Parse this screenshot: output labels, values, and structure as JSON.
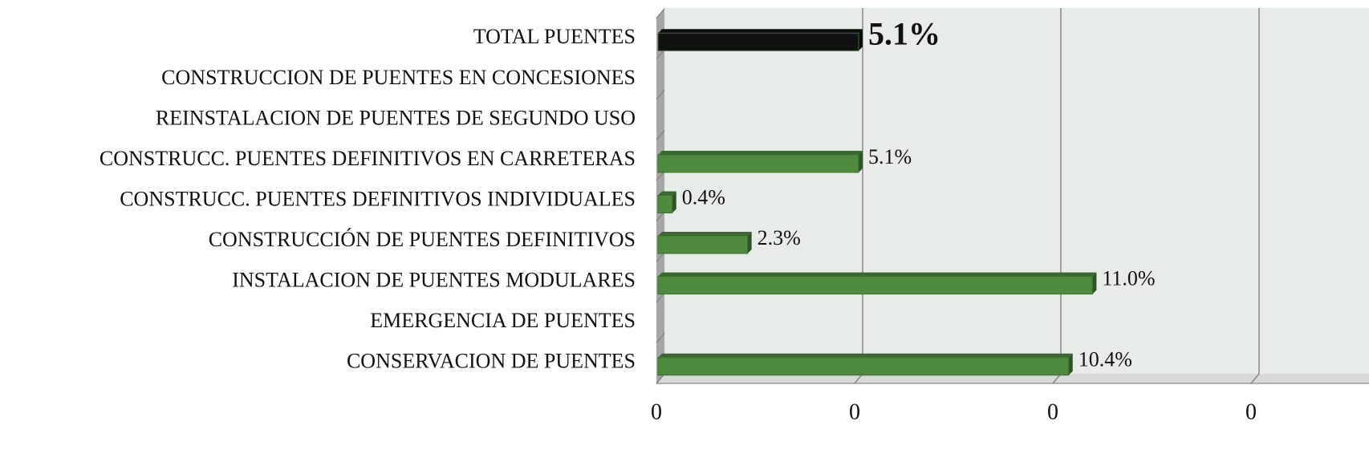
{
  "chart_data": {
    "type": "bar",
    "orientation": "horizontal",
    "categories": [
      "TOTAL PUENTES",
      "CONSTRUCCION DE PUENTES EN CONCESIONES",
      "REINSTALACION DE PUENTES DE SEGUNDO USO",
      "CONSTRUCC. PUENTES DEFINITIVOS EN CARRETERAS",
      "CONSTRUCC. PUENTES DEFINITIVOS INDIVIDUALES",
      "CONSTRUCCIÓN DE PUENTES DEFINITIVOS",
      "INSTALACION DE PUENTES MODULARES",
      "EMERGENCIA DE PUENTES",
      "CONSERVACION DE PUENTES"
    ],
    "values": [
      5.1,
      null,
      null,
      5.1,
      0.4,
      2.3,
      11.0,
      null,
      10.4
    ],
    "value_labels": [
      "5.1%",
      null,
      null,
      "5.1%",
      "0.4%",
      "2.3%",
      "11.0%",
      null,
      "10.4%"
    ],
    "colors": [
      "#111111",
      null,
      null,
      "#4e8b3e",
      "#4e8b3e",
      "#4e8b3e",
      "#4e8b3e",
      null,
      "#4e8b3e"
    ],
    "xlim": [
      0,
      15
    ],
    "xticks": [
      0,
      {
        "value": 5,
        "label": "0"
      },
      {
        "value": 10,
        "label": "0"
      },
      {
        "value": 15,
        "label": "0"
      }
    ],
    "grid": true
  }
}
